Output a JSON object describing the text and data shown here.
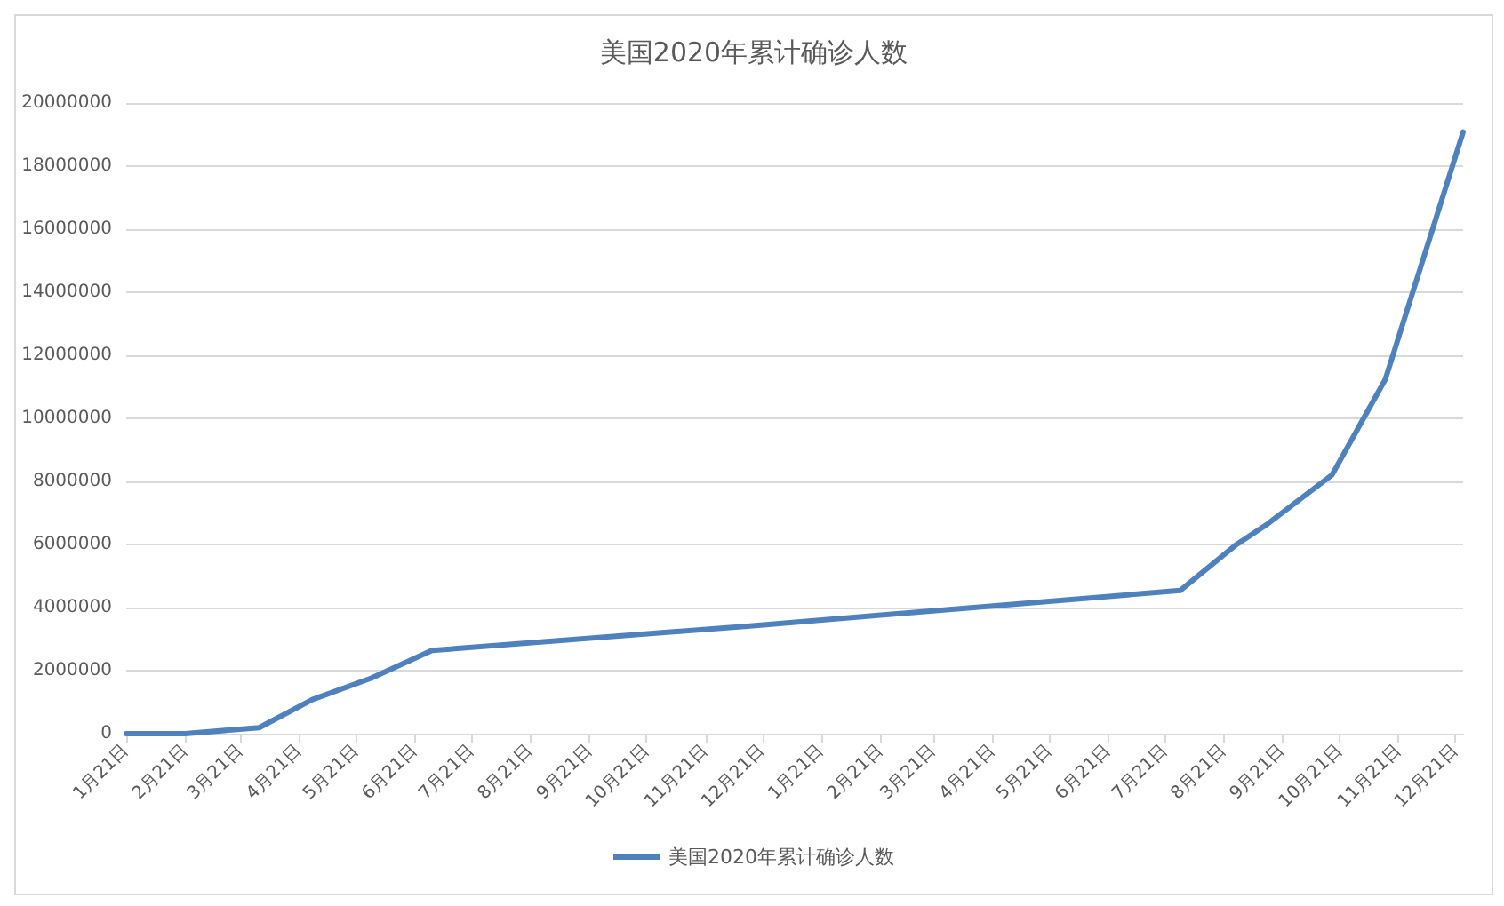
{
  "chart_data": {
    "type": "line",
    "title": "美国2020年累计确诊人数",
    "x": [
      "2020-01-21",
      "2020-02-21",
      "2020-03-31",
      "2020-04-28",
      "2020-05-29",
      "2020-06-30",
      "2020-12-13",
      "2021-07-29",
      "2021-08-27",
      "2021-09-13",
      "2021-10-17",
      "2021-11-14",
      "2021-12-25"
    ],
    "series": [
      {
        "name": "美国2020年累计确诊人数",
        "color": "#4f81bd",
        "values": [
          0,
          0,
          190000,
          1080000,
          1760000,
          2640000,
          3410000,
          4540000,
          5970000,
          6650000,
          8210000,
          11230000,
          19080000
        ]
      }
    ],
    "xlim": [
      "2020-01-21",
      "2021-12-25"
    ],
    "xticks": [
      {
        "value": "2020-01-21",
        "label": "1月21日"
      },
      {
        "value": "2020-02-21",
        "label": "2月21日"
      },
      {
        "value": "2020-03-21",
        "label": "3月21日"
      },
      {
        "value": "2020-04-21",
        "label": "4月21日"
      },
      {
        "value": "2020-05-21",
        "label": "5月21日"
      },
      {
        "value": "2020-06-21",
        "label": "6月21日"
      },
      {
        "value": "2020-07-21",
        "label": "7月21日"
      },
      {
        "value": "2020-08-21",
        "label": "8月21日"
      },
      {
        "value": "2020-09-21",
        "label": "9月21日"
      },
      {
        "value": "2020-10-21",
        "label": "10月21日"
      },
      {
        "value": "2020-11-21",
        "label": "11月21日"
      },
      {
        "value": "2020-12-21",
        "label": "12月21日"
      },
      {
        "value": "2021-01-21",
        "label": "1月21日"
      },
      {
        "value": "2021-02-21",
        "label": "2月21日"
      },
      {
        "value": "2021-03-21",
        "label": "3月21日"
      },
      {
        "value": "2021-04-21",
        "label": "4月21日"
      },
      {
        "value": "2021-05-21",
        "label": "5月21日"
      },
      {
        "value": "2021-06-21",
        "label": "6月21日"
      },
      {
        "value": "2021-07-21",
        "label": "7月21日"
      },
      {
        "value": "2021-08-21",
        "label": "8月21日"
      },
      {
        "value": "2021-09-21",
        "label": "9月21日"
      },
      {
        "value": "2021-10-21",
        "label": "10月21日"
      },
      {
        "value": "2021-11-21",
        "label": "11月21日"
      },
      {
        "value": "2021-12-21",
        "label": "12月21日"
      }
    ],
    "ylim": [
      0,
      20000000
    ],
    "yticks": [
      0,
      2000000,
      4000000,
      6000000,
      8000000,
      10000000,
      12000000,
      14000000,
      16000000,
      18000000,
      20000000
    ],
    "grid": "y",
    "legend": "bottom",
    "marker": "none",
    "line_style": "solid"
  }
}
